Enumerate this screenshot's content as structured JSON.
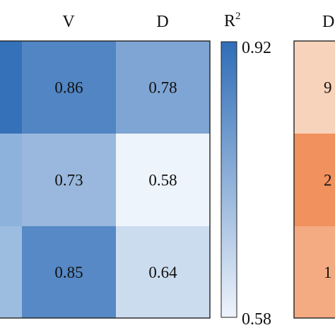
{
  "chart_data": [
    {
      "type": "heatmap",
      "columns": [
        "",
        "V",
        "D"
      ],
      "rows": 3,
      "values": [
        [
          null,
          0.86,
          0.78
        ],
        [
          null,
          0.73,
          0.58
        ],
        [
          null,
          0.85,
          0.64
        ]
      ],
      "colorbar": {
        "title": "R",
        "title_superscript": "2",
        "min": 0.58,
        "max": 0.92,
        "min_label": "0.58",
        "max_label": "0.92"
      },
      "colors": {
        "low": "#eef4fb",
        "high": "#2f6db7"
      }
    },
    {
      "type": "heatmap",
      "columns": [
        "D"
      ],
      "cell_labels": [
        "9",
        "2",
        "1"
      ],
      "colors": [
        "#f8d3bb",
        "#f0915e",
        "#f5ab82"
      ]
    }
  ]
}
